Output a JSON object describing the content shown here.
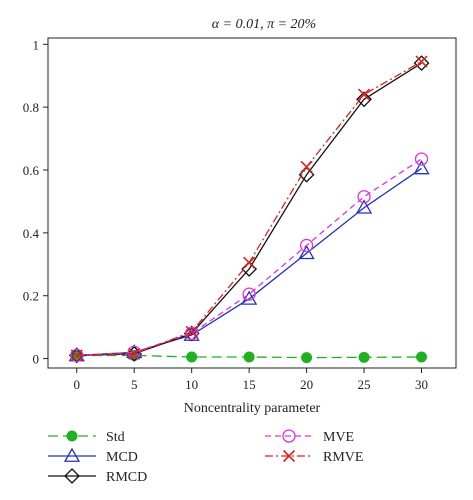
{
  "chart_data": {
    "type": "line",
    "title": "α = 0.01, π = 20%",
    "xlabel": "Noncentrality parameter",
    "ylabel": "",
    "x": [
      0,
      5,
      10,
      15,
      20,
      25,
      30
    ],
    "xticks": [
      "0",
      "5",
      "10",
      "15",
      "20",
      "25",
      "30"
    ],
    "xlim": [
      -2.5,
      33
    ],
    "ylim": [
      -0.03,
      1.02
    ],
    "yticks": [
      0,
      0.2,
      0.4,
      0.6,
      0.8,
      1
    ],
    "ytick_labels": [
      "0",
      "0.2",
      "0.4",
      "0.6",
      "0.8",
      "1"
    ],
    "grid": false,
    "legend_position": "bottom",
    "series": [
      {
        "name": "Std",
        "color": "#22b022",
        "marker": "filled-circle",
        "dash": "long-dash",
        "values": [
          0.01,
          0.01,
          0.005,
          0.005,
          0.003,
          0.004,
          0.005
        ]
      },
      {
        "name": "MCD",
        "color": "#2233bb",
        "marker": "triangle",
        "dash": "solid",
        "values": [
          0.01,
          0.02,
          0.075,
          0.19,
          0.335,
          0.48,
          0.605
        ]
      },
      {
        "name": "RMCD",
        "color": "#111111",
        "marker": "diamond",
        "dash": "solid",
        "values": [
          0.01,
          0.015,
          0.08,
          0.285,
          0.585,
          0.825,
          0.94
        ]
      },
      {
        "name": "MVE",
        "color": "#dd33dd",
        "marker": "circle",
        "dash": "dashed",
        "values": [
          0.01,
          0.02,
          0.08,
          0.205,
          0.36,
          0.515,
          0.635
        ]
      },
      {
        "name": "RMVE",
        "color": "#dd2222",
        "marker": "cross",
        "dash": "dash-dot",
        "values": [
          0.01,
          0.015,
          0.085,
          0.305,
          0.61,
          0.84,
          0.945
        ]
      }
    ]
  }
}
